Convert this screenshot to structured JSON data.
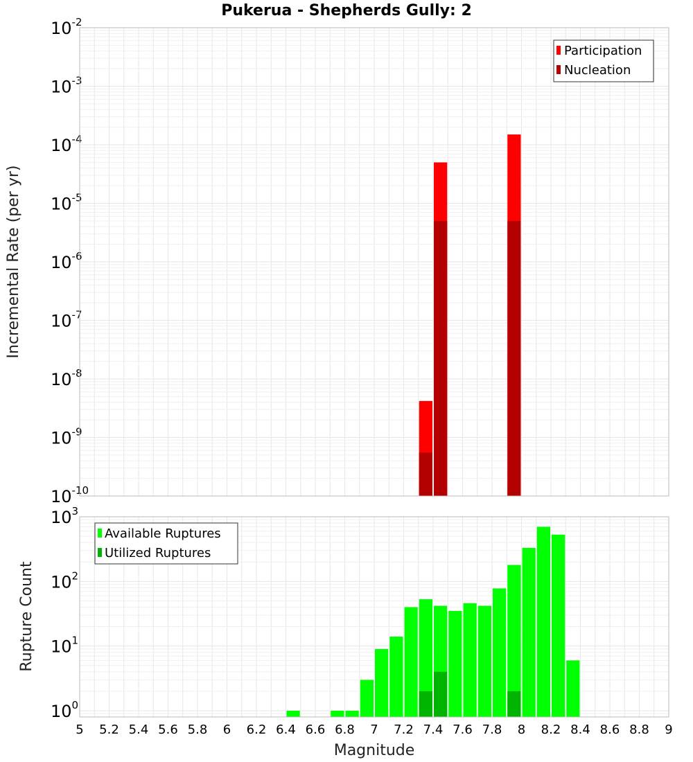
{
  "chart_data": [
    {
      "type": "bar",
      "title": "Pukerua - Shepherds Gully: 2",
      "xlabel": "",
      "ylabel": "Incremental Rate (per yr)",
      "yscale": "log",
      "ylim": [
        1e-10,
        0.01
      ],
      "xlim": [
        5,
        9
      ],
      "legend_position": "top-right",
      "y_ticks": [
        {
          "base": "10",
          "exp": "-10"
        },
        {
          "base": "10",
          "exp": "-9"
        },
        {
          "base": "10",
          "exp": "-8"
        },
        {
          "base": "10",
          "exp": "-7"
        },
        {
          "base": "10",
          "exp": "-6"
        },
        {
          "base": "10",
          "exp": "-5"
        },
        {
          "base": "10",
          "exp": "-4"
        },
        {
          "base": "10",
          "exp": "-3"
        },
        {
          "base": "10",
          "exp": "-2"
        }
      ],
      "series": [
        {
          "name": "Participation",
          "color": "#ff0000",
          "points": [
            {
              "x": 7.35,
              "y": 4.2e-09
            },
            {
              "x": 7.45,
              "y": 5e-05
            },
            {
              "x": 7.95,
              "y": 0.00015
            }
          ]
        },
        {
          "name": "Nucleation",
          "color": "#b30000",
          "points": [
            {
              "x": 7.35,
              "y": 5.5e-10
            },
            {
              "x": 7.45,
              "y": 5e-06
            },
            {
              "x": 7.95,
              "y": 5e-06
            }
          ]
        }
      ]
    },
    {
      "type": "bar",
      "title": "",
      "xlabel": "Magnitude",
      "ylabel": "Rupture Count",
      "yscale": "log",
      "ylim": [
        0.8,
        1000
      ],
      "xlim": [
        5,
        9
      ],
      "legend_position": "top-left",
      "x_ticks": [
        "5",
        "5.2",
        "5.4",
        "5.6",
        "5.8",
        "6",
        "6.2",
        "6.4",
        "6.6",
        "6.8",
        "7",
        "7.2",
        "7.4",
        "7.6",
        "7.8",
        "8",
        "8.2",
        "8.4",
        "8.6",
        "8.8",
        "9"
      ],
      "y_ticks": [
        {
          "base": "10",
          "exp": "0"
        },
        {
          "base": "10",
          "exp": "1"
        },
        {
          "base": "10",
          "exp": "2"
        },
        {
          "base": "10",
          "exp": "3"
        }
      ],
      "series": [
        {
          "name": "Available Ruptures",
          "color": "#00ff00",
          "points": [
            {
              "x": 6.45,
              "y": 1
            },
            {
              "x": 6.75,
              "y": 1
            },
            {
              "x": 6.85,
              "y": 1
            },
            {
              "x": 6.95,
              "y": 3
            },
            {
              "x": 7.05,
              "y": 9
            },
            {
              "x": 7.15,
              "y": 14
            },
            {
              "x": 7.25,
              "y": 40
            },
            {
              "x": 7.35,
              "y": 53
            },
            {
              "x": 7.45,
              "y": 42
            },
            {
              "x": 7.55,
              "y": 35
            },
            {
              "x": 7.65,
              "y": 46
            },
            {
              "x": 7.75,
              "y": 42
            },
            {
              "x": 7.85,
              "y": 78
            },
            {
              "x": 7.95,
              "y": 180
            },
            {
              "x": 8.05,
              "y": 330
            },
            {
              "x": 8.15,
              "y": 700
            },
            {
              "x": 8.25,
              "y": 530
            },
            {
              "x": 8.35,
              "y": 6
            }
          ]
        },
        {
          "name": "Utilized Ruptures",
          "color": "#00b300",
          "points": [
            {
              "x": 7.35,
              "y": 2
            },
            {
              "x": 7.45,
              "y": 4
            },
            {
              "x": 7.95,
              "y": 2
            }
          ]
        }
      ]
    }
  ]
}
